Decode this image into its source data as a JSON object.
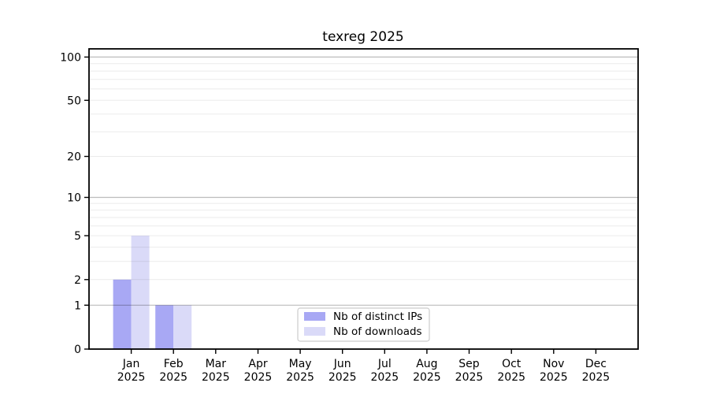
{
  "chart_data": {
    "type": "bar",
    "title": "texreg 2025",
    "categories": [
      "Jan",
      "Feb",
      "Mar",
      "Apr",
      "May",
      "Jun",
      "Jul",
      "Aug",
      "Sep",
      "Oct",
      "Nov",
      "Dec"
    ],
    "x_year_label": "2025",
    "series": [
      {
        "name": "Nb of distinct IPs",
        "color": "#a8a8f4",
        "values": [
          2,
          1,
          0,
          0,
          0,
          0,
          0,
          0,
          0,
          0,
          0,
          0
        ]
      },
      {
        "name": "Nb of downloads",
        "color": "#dadaf8",
        "values": [
          5,
          1,
          0,
          0,
          0,
          0,
          0,
          0,
          0,
          0,
          0,
          0
        ]
      }
    ],
    "xlabel": "",
    "ylabel": "",
    "yscale": "log1p",
    "ylim": [
      0,
      114
    ],
    "ytick_labels": [
      0,
      1,
      2,
      5,
      10,
      20,
      50,
      100
    ],
    "grid": {
      "major_values": [
        1,
        10,
        100
      ],
      "minor_values": [
        2,
        3,
        4,
        5,
        6,
        7,
        8,
        9,
        20,
        30,
        40,
        50,
        60,
        70,
        80,
        90
      ],
      "major_color": "#bdbdbd",
      "minor_color": "#ebebeb"
    },
    "legend": {
      "position": "lower center",
      "border_color": "#cccccc",
      "background": "#ffffff"
    },
    "axis_color": "#000000",
    "text_color": "#000000",
    "background": "#ffffff"
  }
}
